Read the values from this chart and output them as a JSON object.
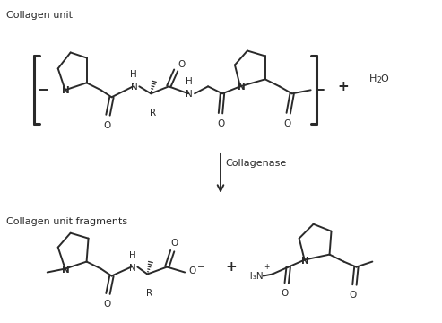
{
  "title_top": "Collagen unit",
  "title_bottom": "Collagen unit fragments",
  "enzyme_label": "Collagenase",
  "bg_color": "#ffffff",
  "line_color": "#2a2a2a",
  "text_color": "#2a2a2a",
  "fig_width": 4.93,
  "fig_height": 3.6,
  "dpi": 100
}
